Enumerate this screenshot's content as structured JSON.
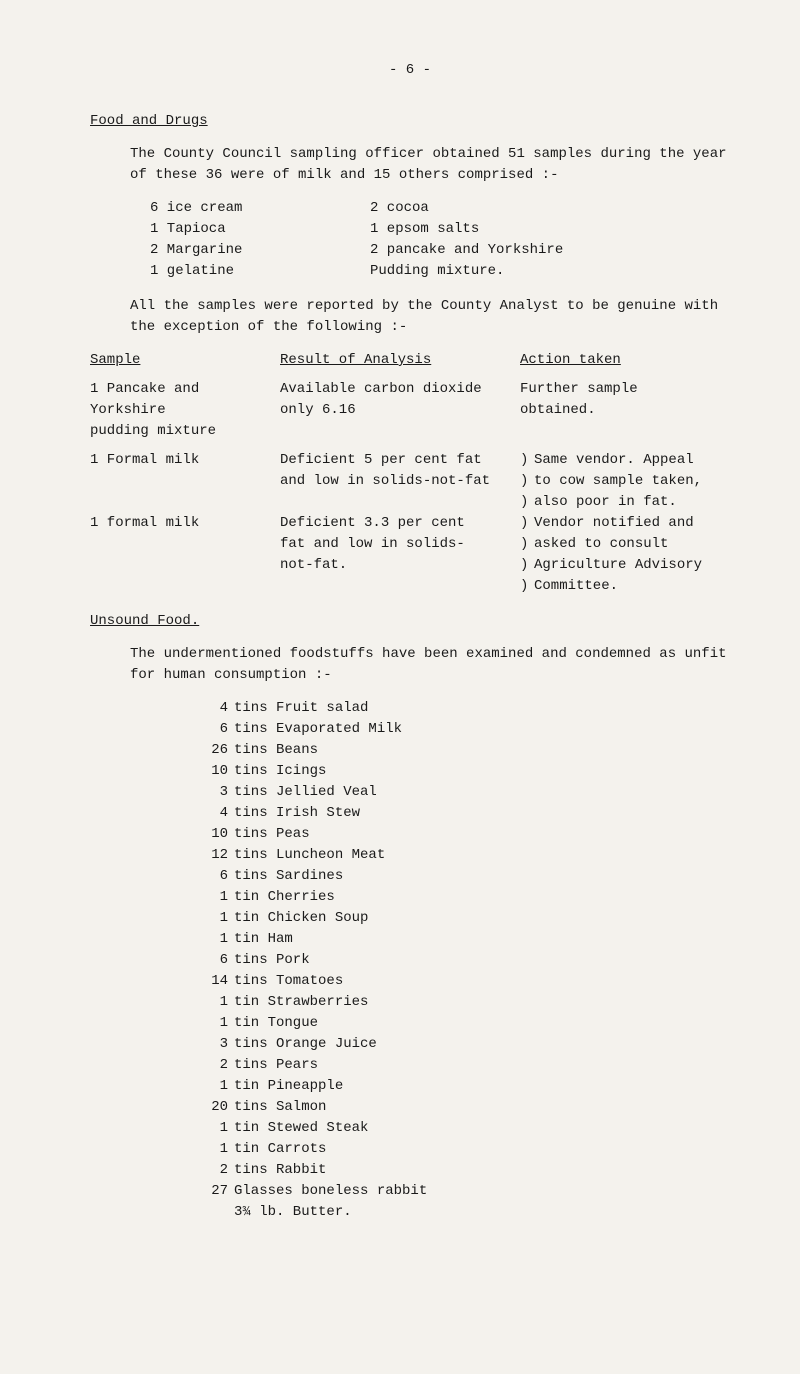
{
  "page_number": "- 6 -",
  "heading1": "Food and Drugs",
  "intro": "The County Council sampling officer obtained 51 samples during the year of these 36 were of milk and 15 others comprised :-",
  "samples_left": [
    "6 ice cream",
    "1 Tapioca",
    "2 Margarine",
    "1 gelatine"
  ],
  "samples_right": [
    "2 cocoa",
    "1 epsom salts",
    "2 pancake and Yorkshire",
    "    Pudding mixture."
  ],
  "para2": "All the samples were reported by the County Analyst to be genuine with the exception of the following :-",
  "table_header": {
    "c1": "Sample",
    "c2": "Result of Analysis",
    "c3": "Action taken"
  },
  "row1_c1a": "1 Pancake and Yorkshire",
  "row1_c1b": "  pudding mixture",
  "row1_c2a": "Available carbon dioxide",
  "row1_c2b": "only 6.16",
  "row1_c3a": "Further sample",
  "row1_c3b": "obtained.",
  "row2_c1": "1 Formal milk",
  "row2_c2a": "Deficient 5 per cent fat",
  "row2_c2b": "and low in solids-not-fat",
  "row3_c1": "1 formal milk",
  "row3_c2a": "Deficient 3.3  per cent",
  "row3_c2b": "fat and low in solids-",
  "row3_c2c": "not-fat.",
  "action_block": [
    "Same vendor.  Appeal",
    "to cow sample taken,",
    "also poor in fat.",
    "Vendor notified and",
    "asked to consult",
    "Agriculture Advisory",
    "Committee."
  ],
  "heading2": "Unsound Food.",
  "para3": "The undermentioned foodstuffs have been examined and condemned as unfit for human consumption :-",
  "food_list": [
    {
      "q": "4",
      "t": "tins Fruit salad"
    },
    {
      "q": "6",
      "t": "tins Evaporated Milk"
    },
    {
      "q": "26",
      "t": "tins Beans"
    },
    {
      "q": "10",
      "t": "tins Icings"
    },
    {
      "q": "3",
      "t": "tins Jellied Veal"
    },
    {
      "q": "4",
      "t": "tins Irish Stew"
    },
    {
      "q": "10",
      "t": "tins Peas"
    },
    {
      "q": "12",
      "t": "tins Luncheon Meat"
    },
    {
      "q": "6",
      "t": "tins Sardines"
    },
    {
      "q": "1",
      "t": "tin Cherries"
    },
    {
      "q": "1",
      "t": "tin Chicken Soup"
    },
    {
      "q": "1",
      "t": "tin Ham"
    },
    {
      "q": "6",
      "t": "tins Pork"
    },
    {
      "q": "14",
      "t": "tins Tomatoes"
    },
    {
      "q": "1",
      "t": "tin Strawberries"
    },
    {
      "q": "1",
      "t": "tin Tongue"
    },
    {
      "q": "3",
      "t": "tins Orange Juice"
    },
    {
      "q": "2",
      "t": "tins Pears"
    },
    {
      "q": "1",
      "t": "tin Pineapple"
    },
    {
      "q": "20",
      "t": "tins Salmon"
    },
    {
      "q": "1",
      "t": "tin Stewed Steak"
    },
    {
      "q": "1",
      "t": "tin Carrots"
    },
    {
      "q": "2",
      "t": "tins Rabbit"
    },
    {
      "q": "27",
      "t": "Glasses boneless rabbit"
    },
    {
      "q": "",
      "t": "3¾ lb. Butter."
    }
  ]
}
